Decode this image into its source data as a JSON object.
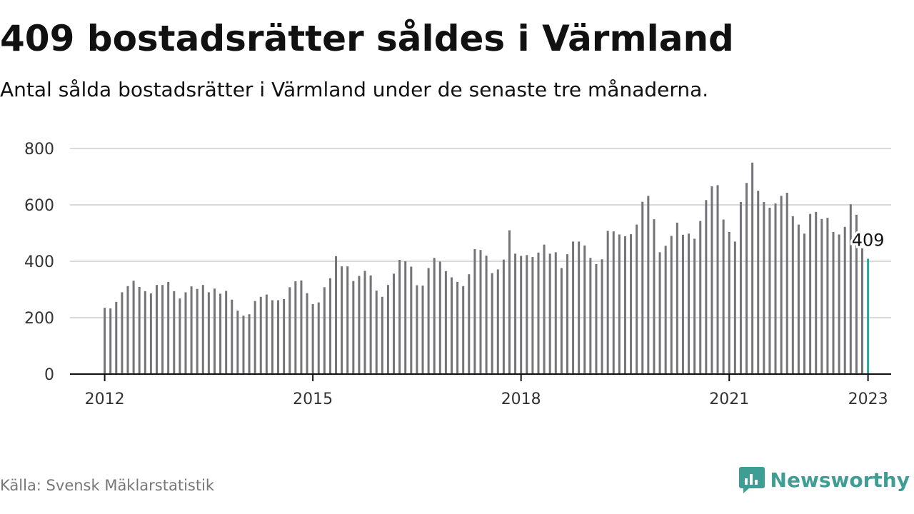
{
  "header": {
    "title": "409 bostadsrätter såldes i Värmland",
    "subtitle": "Antal sålda bostadsrätter i Värmland under de senaste tre månaderna."
  },
  "footer": {
    "source": "Källa: Svensk Mäklarstatistik",
    "brand": "Newsworthy"
  },
  "colors": {
    "bar": "#737378",
    "highlight": "#2aa79b",
    "grid": "#d9d9d9",
    "axis": "#111111",
    "brand": "#3f9e94"
  },
  "icons": {
    "brand_logo": "bar-chart-speech-bubble-icon"
  },
  "chart_data": {
    "type": "bar",
    "title": "409 bostadsrätter såldes i Värmland",
    "subtitle": "Antal sålda bostadsrätter i Värmland under de senaste tre månaderna.",
    "xlabel": "",
    "ylabel": "",
    "ylim": [
      0,
      800
    ],
    "yticks": [
      0,
      200,
      400,
      600,
      800
    ],
    "xlim": [
      "2011-07",
      "2023-05"
    ],
    "xticks": [
      {
        "date": "2012-01",
        "label": "2012"
      },
      {
        "date": "2015-01",
        "label": "2015"
      },
      {
        "date": "2018-01",
        "label": "2018"
      },
      {
        "date": "2021-01",
        "label": "2021"
      },
      {
        "date": "2023-01",
        "label": "2023"
      }
    ],
    "grid": true,
    "legend": "none",
    "start": "2012-01",
    "frequency": "monthly",
    "highlight_last": true,
    "last_value_label": "409",
    "values": [
      235,
      233,
      256,
      290,
      312,
      331,
      309,
      294,
      286,
      316,
      316,
      327,
      294,
      268,
      290,
      311,
      302,
      316,
      290,
      303,
      285,
      295,
      264,
      225,
      207,
      212,
      259,
      274,
      282,
      262,
      262,
      266,
      308,
      329,
      332,
      287,
      248,
      254,
      308,
      340,
      418,
      382,
      382,
      330,
      348,
      366,
      350,
      296,
      274,
      316,
      356,
      405,
      400,
      381,
      315,
      314,
      376,
      412,
      399,
      365,
      343,
      327,
      312,
      354,
      443,
      440,
      420,
      358,
      371,
      406,
      510,
      427,
      419,
      422,
      415,
      431,
      459,
      427,
      432,
      376,
      425,
      470,
      470,
      456,
      412,
      390,
      407,
      508,
      506,
      495,
      489,
      496,
      530,
      611,
      632,
      549,
      432,
      455,
      490,
      537,
      494,
      498,
      480,
      543,
      617,
      666,
      670,
      548,
      504,
      470,
      610,
      678,
      750,
      650,
      610,
      590,
      605,
      632,
      643,
      560,
      530,
      498,
      568,
      575,
      550,
      554,
      504,
      495,
      522,
      602,
      565,
      446,
      409
    ]
  }
}
